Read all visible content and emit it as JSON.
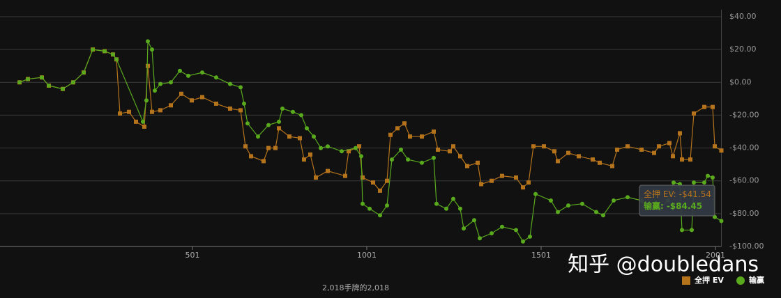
{
  "chart_data": {
    "type": "line",
    "xlabel": "2,018手牌的2,018",
    "xlim": [
      1,
      2018
    ],
    "xticks": [
      501,
      1001,
      1501,
      2001
    ],
    "ylim": [
      -100,
      40
    ],
    "yticks": [
      {
        "value": 40,
        "label": "$40.00"
      },
      {
        "value": 20,
        "label": "$20.00"
      },
      {
        "value": 0,
        "label": "$0.00"
      },
      {
        "value": -20,
        "label": "-$20.00"
      },
      {
        "value": -40,
        "label": "-$40.00"
      },
      {
        "value": -60,
        "label": "-$60.00"
      },
      {
        "value": -80,
        "label": "-$80.00"
      },
      {
        "value": -100,
        "label": "-$100.00"
      }
    ],
    "grid": true,
    "legend": "bottom-right",
    "series": [
      {
        "name": "全押 EV",
        "color": "#b5731c",
        "marker": "square",
        "x": [
          5,
          29,
          69,
          89,
          129,
          159,
          189,
          215,
          249,
          273,
          283,
          293,
          319,
          339,
          363,
          373,
          385,
          409,
          439,
          469,
          499,
          529,
          569,
          609,
          639,
          653,
          669,
          705,
          719,
          739,
          749,
          779,
          809,
          821,
          839,
          855,
          889,
          939,
          949,
          979,
          989,
          1019,
          1039,
          1059,
          1069,
          1089,
          1109,
          1125,
          1159,
          1193,
          1205,
          1239,
          1249,
          1269,
          1289,
          1319,
          1329,
          1359,
          1389,
          1429,
          1449,
          1465,
          1479,
          1509,
          1539,
          1549,
          1579,
          1609,
          1649,
          1669,
          1705,
          1719,
          1749,
          1789,
          1825,
          1839,
          1869,
          1879,
          1899,
          1905,
          1929,
          1939,
          1969,
          1993,
          1999,
          2018
        ],
        "values": [
          0,
          2,
          3,
          -2,
          -4,
          0,
          6,
          20,
          19,
          17,
          14,
          -19,
          -18,
          -24,
          -27,
          10,
          -18,
          -17,
          -14,
          -7,
          -11,
          -9,
          -13,
          -16,
          -17,
          -39,
          -45,
          -48,
          -40,
          -40,
          -28,
          -33,
          -34,
          -47,
          -44,
          -58,
          -54,
          -57,
          -42,
          -39,
          -58,
          -61,
          -66,
          -60,
          -32,
          -28,
          -25,
          -33,
          -33,
          -30,
          -41,
          -42,
          -39,
          -45,
          -51,
          -49,
          -62,
          -60,
          -57,
          -58,
          -64,
          -61,
          -39,
          -39,
          -42,
          -48,
          -43,
          -45,
          -47,
          -49,
          -51,
          -41,
          -39,
          -41,
          -43,
          -39,
          -37,
          -45,
          -31,
          -47,
          -47,
          -19,
          -15,
          -15,
          -39,
          -41.54
        ]
      },
      {
        "name": "输赢",
        "color": "#5aaa1e",
        "marker": "circle",
        "x": [
          5,
          29,
          69,
          89,
          129,
          159,
          189,
          215,
          249,
          273,
          283,
          359,
          369,
          373,
          385,
          393,
          409,
          439,
          465,
          489,
          529,
          569,
          609,
          639,
          649,
          659,
          689,
          719,
          749,
          759,
          789,
          813,
          829,
          849,
          869,
          889,
          929,
          969,
          985,
          989,
          1009,
          1039,
          1059,
          1073,
          1099,
          1119,
          1159,
          1193,
          1201,
          1229,
          1249,
          1269,
          1279,
          1309,
          1325,
          1359,
          1389,
          1429,
          1449,
          1469,
          1485,
          1529,
          1549,
          1579,
          1619,
          1659,
          1679,
          1709,
          1749,
          1789,
          1839,
          1865,
          1881,
          1899,
          1905,
          1933,
          1939,
          1969,
          1979,
          1993,
          1999,
          2018
        ],
        "values": [
          0,
          2,
          3,
          -2,
          -4,
          0,
          6,
          20,
          19,
          17,
          14,
          -24,
          -11,
          25,
          20,
          -5,
          -1,
          0,
          7,
          4,
          6,
          3,
          -1,
          -3,
          -13,
          -25,
          -33,
          -26,
          -24,
          -16,
          -18,
          -20,
          -28,
          -33,
          -40,
          -39,
          -42,
          -40,
          -45,
          -74,
          -77,
          -81,
          -75,
          -47,
          -41,
          -47,
          -49,
          -46,
          -74,
          -77,
          -71,
          -77,
          -89,
          -84,
          -95,
          -92,
          -88,
          -90,
          -97,
          -94,
          -68,
          -72,
          -79,
          -75,
          -74,
          -79,
          -81,
          -72,
          -70,
          -72,
          -77,
          -72,
          -61,
          -62,
          -90,
          -90,
          -61,
          -61,
          -57,
          -58,
          -82,
          -84.45
        ]
      }
    ],
    "tooltip": [
      {
        "label": "全押 EV:",
        "value": "-$41.54"
      },
      {
        "label": "输赢:",
        "value": "-$84.45"
      }
    ]
  },
  "watermark": "知乎 @doubledans"
}
